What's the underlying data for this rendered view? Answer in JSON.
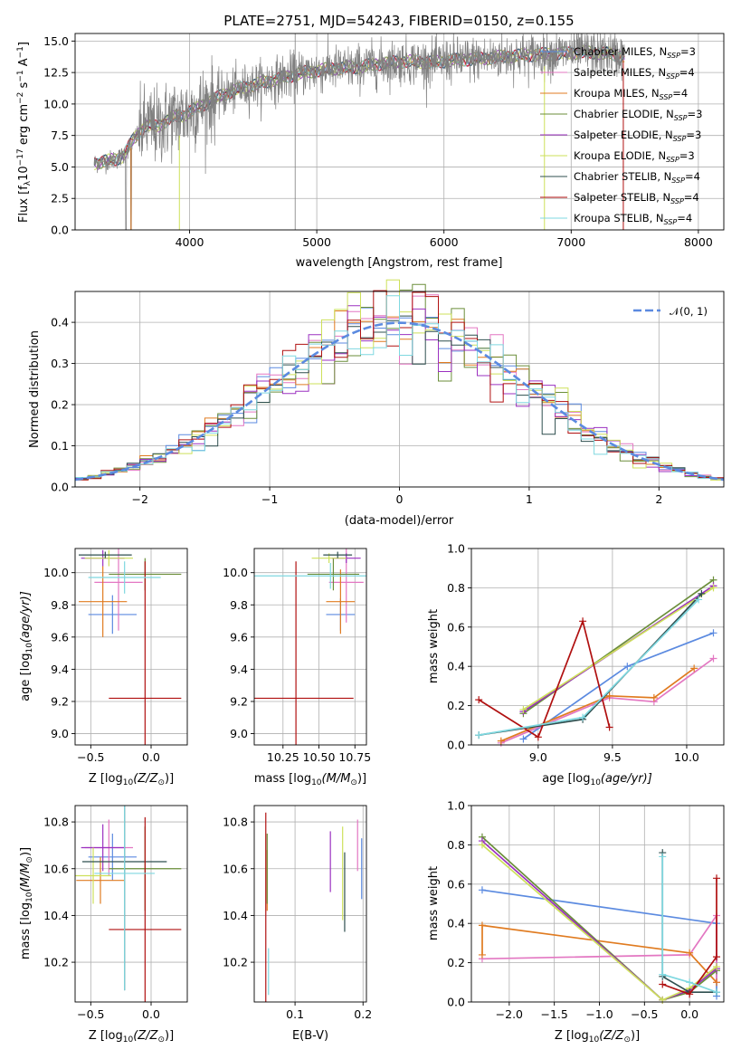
{
  "chart_data": [
    {
      "panel": "spectrum",
      "type": "line",
      "title": "PLATE=2751, MJD=54243, FIBERID=0150, z=0.155",
      "xlabel": "wavelength [Angstrom, rest frame]",
      "ylabel": "Flux [f",
      "ylabel_sub": "λ",
      "ylabel_tail": "10",
      "ylabel_exp1": "−17",
      "ylabel_mid": " erg cm",
      "ylabel_exp2": "−2",
      "ylabel_mid2": " s",
      "ylabel_exp3": "−1",
      "ylabel_mid3": " A",
      "ylabel_exp4": "−1",
      "ylabel_end": "]",
      "xlim": [
        3100,
        8200
      ],
      "ylim": [
        0,
        15.6
      ],
      "xticks": [
        "4000",
        "5000",
        "6000",
        "7000",
        "8000"
      ],
      "xtick_values": [
        4000,
        5000,
        6000,
        7000,
        8000
      ],
      "yticks": [
        "0.0",
        "2.5",
        "5.0",
        "7.5",
        "10.0",
        "12.5",
        "15.0"
      ],
      "ytick_values": [
        0,
        2.5,
        5,
        7.5,
        10,
        12.5,
        15
      ],
      "data_color": "#808080",
      "continuum_anchors": {
        "x": [
          3250,
          3420,
          3480,
          3560,
          3650,
          3750,
          3850,
          3950,
          4100,
          4300,
          4500,
          4700,
          4900,
          5100,
          5300,
          5500,
          5700,
          5900,
          6100,
          6300,
          6500,
          6700,
          6900,
          7100,
          7300,
          7420
        ],
        "y": [
          5.3,
          5.6,
          5.9,
          7.2,
          8.3,
          8.2,
          8.9,
          9.1,
          9.9,
          10.9,
          11.5,
          12.0,
          12.5,
          12.8,
          12.9,
          13.2,
          13.4,
          13.3,
          13.5,
          13.6,
          13.8,
          13.9,
          14.0,
          14.1,
          14.0,
          13.8
        ]
      },
      "legend": [
        {
          "label": "Chabrier MILES, N",
          "sub": "SSP",
          "tail": "=3",
          "color": "#5b8ae0"
        },
        {
          "label": "Salpeter MILES, N",
          "sub": "SSP",
          "tail": "=4",
          "color": "#e377c2"
        },
        {
          "label": "Kroupa MILES, N",
          "sub": "SSP",
          "tail": "=4",
          "color": "#e07b20"
        },
        {
          "label": "Chabrier ELODIE, N",
          "sub": "SSP",
          "tail": "=3",
          "color": "#6b8e3a"
        },
        {
          "label": "Salpeter ELODIE, N",
          "sub": "SSP",
          "tail": "=3",
          "color": "#9b30c0"
        },
        {
          "label": "Kroupa ELODIE, N",
          "sub": "SSP",
          "tail": "=3",
          "color": "#cde05a"
        },
        {
          "label": "Chabrier STELIB, N",
          "sub": "SSP",
          "tail": "=4",
          "color": "#2f4f4f"
        },
        {
          "label": "Salpeter STELIB, N",
          "sub": "SSP",
          "tail": "=4",
          "color": "#b01010"
        },
        {
          "label": "Kroupa STELIB, N",
          "sub": "SSP",
          "tail": "=4",
          "color": "#7fd8e0"
        }
      ]
    },
    {
      "panel": "residuals",
      "type": "histogram",
      "xlabel": "(data-model)/error",
      "ylabel": "Normed distribution",
      "legend": "𝒩(0, 1)",
      "xlim": [
        -2.5,
        2.5
      ],
      "ylim": [
        0,
        0.475
      ],
      "xticks": [
        "−2",
        "−1",
        "0",
        "1",
        "2"
      ],
      "xtick_values": [
        -2,
        -1,
        0,
        1,
        2
      ],
      "yticks": [
        "0.0",
        "0.1",
        "0.2",
        "0.3",
        "0.4"
      ],
      "ytick_values": [
        0,
        0.1,
        0.2,
        0.3,
        0.4
      ],
      "bin_width": 0.1,
      "gaussian_color": "#5b8ae0"
    },
    {
      "panel": "age_vs_Z",
      "type": "errorbar",
      "xlabel": "Z [log",
      "xlabel_sub": "10",
      "xlabel_tail": "(Z/Z",
      "xlabel_sub2": "⊙",
      "xlabel_end": ")]",
      "ylabel": "age  [log",
      "ylabel_sub": "10",
      "ylabel_tail": "(age/yr)]",
      "xlim": [
        -0.63,
        0.3
      ],
      "ylim": [
        8.93,
        10.15
      ],
      "xticks": [
        "−0.5",
        "0.0"
      ],
      "xtick_values": [
        -0.5,
        0.0
      ],
      "yticks": [
        "9.0",
        "9.2",
        "9.4",
        "9.6",
        "9.8",
        "10.0"
      ],
      "ytick_values": [
        9.0,
        9.2,
        9.4,
        9.6,
        9.8,
        10.0
      ],
      "points": [
        {
          "x": -0.32,
          "xerr": 0.2,
          "y": 9.74,
          "yerr": 0.12,
          "color": "#5b8ae0"
        },
        {
          "x": -0.27,
          "xerr": 0.2,
          "y": 9.94,
          "yerr": 0.3,
          "color": "#e377c2"
        },
        {
          "x": -0.4,
          "xerr": 0.2,
          "y": 9.82,
          "yerr": 0.22,
          "color": "#e07b20"
        },
        {
          "x": -0.05,
          "xerr": 0.3,
          "y": 9.99,
          "yerr": 0.1,
          "color": "#6b8e3a"
        },
        {
          "x": -0.4,
          "xerr": 0.18,
          "y": 10.09,
          "yerr": 0.05,
          "color": "#9b30c0"
        },
        {
          "x": -0.35,
          "xerr": 0.2,
          "y": 10.09,
          "yerr": 0.05,
          "color": "#cde05a"
        },
        {
          "x": -0.38,
          "xerr": 0.22,
          "y": 10.11,
          "yerr": 0.02,
          "color": "#2f4f4f"
        },
        {
          "x": -0.05,
          "xerr": 0.3,
          "y": 9.22,
          "yerr": 0.85,
          "color": "#b01010"
        },
        {
          "x": -0.22,
          "xerr": 0.3,
          "y": 9.97,
          "yerr": 0.1,
          "color": "#7fd8e0"
        }
      ]
    },
    {
      "panel": "age_vs_mass",
      "type": "errorbar",
      "xlabel": "mass [log",
      "xlabel_sub": "10",
      "xlabel_tail": "(M/M",
      "xlabel_sub2": "⊙",
      "xlabel_end": ")]",
      "xlim": [
        10.05,
        10.83
      ],
      "ylim": [
        8.93,
        10.15
      ],
      "xticks": [
        "10.25",
        "10.50",
        "10.75"
      ],
      "xtick_values": [
        10.25,
        10.5,
        10.75
      ],
      "yticks": [
        "9.0",
        "9.2",
        "9.4",
        "9.6",
        "9.8",
        "10.0"
      ],
      "ytick_values": [
        9.0,
        9.2,
        9.4,
        9.6,
        9.8,
        10.0
      ],
      "points": [
        {
          "x": 10.65,
          "xerr": 0.1,
          "y": 9.74,
          "yerr": 0.1,
          "color": "#5b8ae0"
        },
        {
          "x": 10.69,
          "xerr": 0.12,
          "y": 9.94,
          "yerr": 0.25,
          "color": "#e377c2"
        },
        {
          "x": 10.65,
          "xerr": 0.1,
          "y": 9.82,
          "yerr": 0.2,
          "color": "#e07b20"
        },
        {
          "x": 10.6,
          "xerr": 0.18,
          "y": 9.99,
          "yerr": 0.1,
          "color": "#6b8e3a"
        },
        {
          "x": 10.69,
          "xerr": 0.1,
          "y": 10.09,
          "yerr": 0.03,
          "color": "#9b30c0"
        },
        {
          "x": 10.57,
          "xerr": 0.12,
          "y": 10.09,
          "yerr": 0.03,
          "color": "#cde05a"
        },
        {
          "x": 10.63,
          "xerr": 0.1,
          "y": 10.11,
          "yerr": 0.02,
          "color": "#2f4f4f"
        },
        {
          "x": 10.34,
          "xerr": 0.4,
          "y": 9.22,
          "yerr": 0.85,
          "color": "#b01010"
        },
        {
          "x": 10.58,
          "xerr": 0.6,
          "y": 9.98,
          "yerr": 0.08,
          "color": "#7fd8e0"
        }
      ]
    },
    {
      "panel": "massweight_vs_age",
      "type": "line",
      "xlabel": "age  [log",
      "xlabel_sub": "10",
      "xlabel_tail": "(age/yr)]",
      "ylabel": "mass weight",
      "xlim": [
        8.55,
        10.25
      ],
      "ylim": [
        0,
        1
      ],
      "xticks": [
        "9.0",
        "9.5",
        "10.0"
      ],
      "xtick_values": [
        9.0,
        9.5,
        10.0
      ],
      "yticks": [
        "0.0",
        "0.2",
        "0.4",
        "0.6",
        "0.8",
        "1.0"
      ],
      "ytick_values": [
        0,
        0.2,
        0.4,
        0.6,
        0.8,
        1.0
      ],
      "series": [
        {
          "color": "#5b8ae0",
          "x": [
            8.9,
            9.6,
            10.18
          ],
          "y": [
            0.03,
            0.4,
            0.57
          ]
        },
        {
          "color": "#e377c2",
          "x": [
            8.75,
            9.48,
            9.78,
            10.18
          ],
          "y": [
            0.01,
            0.24,
            0.22,
            0.44
          ]
        },
        {
          "color": "#e07b20",
          "x": [
            8.75,
            9.48,
            9.78,
            10.05
          ],
          "y": [
            0.02,
            0.25,
            0.24,
            0.39
          ]
        },
        {
          "color": "#6b8e3a",
          "x": [
            8.9,
            10.18
          ],
          "y": [
            0.16,
            0.84
          ]
        },
        {
          "color": "#9b30c0",
          "x": [
            8.9,
            10.18
          ],
          "y": [
            0.17,
            0.81
          ]
        },
        {
          "color": "#cde05a",
          "x": [
            8.9,
            10.18
          ],
          "y": [
            0.18,
            0.8
          ]
        },
        {
          "color": "#2f4f4f",
          "x": [
            8.6,
            9.3,
            10.1
          ],
          "y": [
            0.05,
            0.13,
            0.77
          ]
        },
        {
          "color": "#b01010",
          "x": [
            8.6,
            9.0,
            9.3,
            9.48
          ],
          "y": [
            0.23,
            0.04,
            0.63,
            0.09
          ]
        },
        {
          "color": "#7fd8e0",
          "x": [
            8.6,
            9.3,
            10.08
          ],
          "y": [
            0.05,
            0.14,
            0.74
          ]
        }
      ]
    },
    {
      "panel": "mass_vs_Z",
      "type": "errorbar",
      "xlabel": "Z [log",
      "xlabel_sub": "10",
      "xlabel_tail": "(Z/Z",
      "xlabel_sub2": "⊙",
      "xlabel_end": ")]",
      "ylabel": "mass [log",
      "ylabel_sub": "10",
      "ylabel_tail": "(M/M",
      "ylabel_sub2": "⊙",
      "ylabel_end": ")]",
      "xlim": [
        -0.63,
        0.3
      ],
      "ylim": [
        10.03,
        10.87
      ],
      "xticks": [
        "−0.5",
        "0.0"
      ],
      "xtick_values": [
        -0.5,
        0.0
      ],
      "yticks": [
        "10.2",
        "10.4",
        "10.6",
        "10.8"
      ],
      "ytick_values": [
        10.2,
        10.4,
        10.6,
        10.8
      ],
      "points": [
        {
          "x": -0.32,
          "xerr": 0.2,
          "y": 10.65,
          "yerr": 0.1,
          "color": "#5b8ae0"
        },
        {
          "x": -0.35,
          "xerr": 0.2,
          "y": 10.69,
          "yerr": 0.12,
          "color": "#e377c2"
        },
        {
          "x": -0.42,
          "xerr": 0.2,
          "y": 10.55,
          "yerr": 0.1,
          "color": "#e07b20"
        },
        {
          "x": -0.05,
          "xerr": 0.3,
          "y": 10.6,
          "yerr": 0.18,
          "color": "#6b8e3a"
        },
        {
          "x": -0.4,
          "xerr": 0.18,
          "y": 10.69,
          "yerr": 0.1,
          "color": "#9b30c0"
        },
        {
          "x": -0.48,
          "xerr": 0.15,
          "y": 10.57,
          "yerr": 0.12,
          "color": "#cde05a"
        },
        {
          "x": -0.22,
          "xerr": 0.35,
          "y": 10.63,
          "yerr": 0.55,
          "color": "#2f4f4f"
        },
        {
          "x": -0.05,
          "xerr": 0.3,
          "y": 10.34,
          "yerr": 0.48,
          "color": "#b01010"
        },
        {
          "x": -0.22,
          "xerr": 0.25,
          "y": 10.58,
          "yerr": 0.5,
          "color": "#7fd8e0"
        }
      ]
    },
    {
      "panel": "mass_vs_EBV",
      "type": "errorbar",
      "xlabel": "E(B-V)",
      "xlim": [
        0.04,
        0.205
      ],
      "ylim": [
        10.03,
        10.87
      ],
      "xticks": [
        "0.1",
        "0.2"
      ],
      "xtick_values": [
        0.1,
        0.2
      ],
      "yticks": [
        "10.2",
        "10.4",
        "10.6",
        "10.8"
      ],
      "ytick_values": [
        10.2,
        10.4,
        10.6,
        10.8
      ],
      "points": [
        {
          "x": 0.198,
          "y": 10.6,
          "yerr": 0.13,
          "color": "#5b8ae0"
        },
        {
          "x": 0.192,
          "y": 10.7,
          "yerr": 0.11,
          "color": "#e377c2"
        },
        {
          "x": 0.059,
          "y": 10.55,
          "yerr": 0.13,
          "color": "#e07b20"
        },
        {
          "x": 0.059,
          "y": 10.6,
          "yerr": 0.15,
          "color": "#6b8e3a"
        },
        {
          "x": 0.152,
          "y": 10.63,
          "yerr": 0.13,
          "color": "#9b30c0"
        },
        {
          "x": 0.17,
          "y": 10.58,
          "yerr": 0.2,
          "color": "#cde05a"
        },
        {
          "x": 0.173,
          "y": 10.5,
          "yerr": 0.17,
          "color": "#2f4f4f"
        },
        {
          "x": 0.057,
          "y": 10.34,
          "yerr": 0.5,
          "color": "#b01010"
        },
        {
          "x": 0.061,
          "y": 10.16,
          "yerr": 0.1,
          "color": "#7fd8e0"
        }
      ]
    },
    {
      "panel": "massweight_vs_Z",
      "type": "line",
      "xlabel": "Z [log",
      "xlabel_sub": "10",
      "xlabel_tail": "(Z/Z",
      "xlabel_sub2": "⊙",
      "xlabel_end": ")]",
      "ylabel": "mass weight",
      "xlim": [
        -2.42,
        0.38
      ],
      "ylim": [
        0,
        1
      ],
      "xticks": [
        "−2.0",
        "−1.5",
        "−1.0",
        "−0.5",
        "0.0"
      ],
      "xtick_values": [
        -2.0,
        -1.5,
        -1.0,
        -0.5,
        0.0
      ],
      "yticks": [
        "0.0",
        "0.2",
        "0.4",
        "0.6",
        "0.8",
        "1.0"
      ],
      "ytick_values": [
        0,
        0.2,
        0.4,
        0.6,
        0.8,
        1.0
      ],
      "series": [
        {
          "color": "#5b8ae0",
          "x": [
            -2.3,
            0.3,
            0.3
          ],
          "y": [
            0.57,
            0.4,
            0.03
          ]
        },
        {
          "color": "#e377c2",
          "x": [
            -2.3,
            0.0,
            0.3,
            0.3
          ],
          "y": [
            0.22,
            0.24,
            0.44,
            0.1
          ]
        },
        {
          "color": "#e07b20",
          "x": [
            -2.3,
            -2.3,
            0.0,
            0.3
          ],
          "y": [
            0.24,
            0.39,
            0.25,
            0.1
          ]
        },
        {
          "color": "#6b8e3a",
          "x": [
            -2.3,
            -0.3,
            0.0,
            0.3
          ],
          "y": [
            0.84,
            0.01,
            0.05,
            0.16
          ]
        },
        {
          "color": "#9b30c0",
          "x": [
            -2.3,
            -0.3,
            0.0,
            0.3
          ],
          "y": [
            0.82,
            0.01,
            0.06,
            0.17
          ]
        },
        {
          "color": "#cde05a",
          "x": [
            -2.3,
            -0.3,
            0.0,
            0.3
          ],
          "y": [
            0.8,
            0.01,
            0.07,
            0.18
          ]
        },
        {
          "color": "#2f4f4f",
          "x": [
            -0.3,
            -0.3,
            0.0,
            0.3
          ],
          "y": [
            0.76,
            0.13,
            0.05,
            0.05
          ]
        },
        {
          "color": "#b01010",
          "x": [
            -0.3,
            0.0,
            0.3,
            0.3
          ],
          "y": [
            0.09,
            0.04,
            0.23,
            0.63
          ]
        },
        {
          "color": "#7fd8e0",
          "x": [
            -0.3,
            -0.3,
            0.0,
            0.3
          ],
          "y": [
            0.74,
            0.14,
            0.1,
            0.05
          ]
        }
      ]
    }
  ]
}
